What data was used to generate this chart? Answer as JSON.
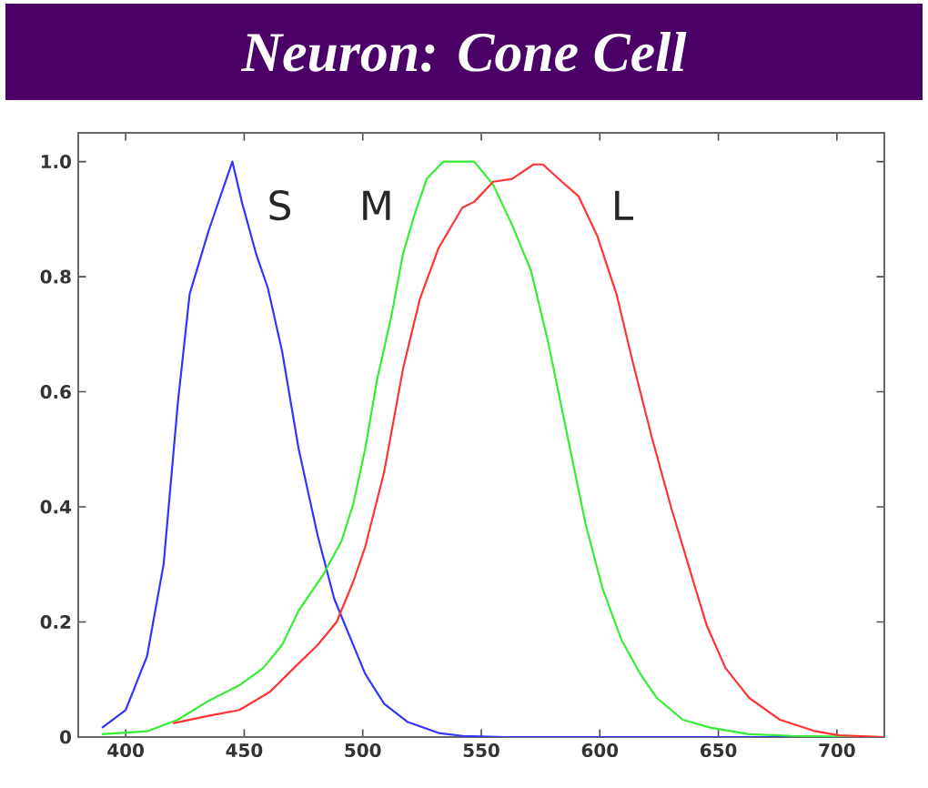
{
  "chart_data": {
    "type": "line",
    "title": "Neuron: Cone Cell",
    "xlim": [
      380,
      720
    ],
    "ylim": [
      0,
      1.05
    ],
    "xticks": [
      400,
      450,
      500,
      550,
      600,
      650,
      700
    ],
    "yticks": [
      {
        "value": 0,
        "label": "0"
      },
      {
        "value": 0.2,
        "label": "0.2"
      },
      {
        "value": 0.4,
        "label": "0.4"
      },
      {
        "value": 0.6,
        "label": "0.6"
      },
      {
        "value": 0.8,
        "label": "0.8"
      },
      {
        "value": 1.0,
        "label": "1.0"
      }
    ],
    "grid": false,
    "marker": "none",
    "line_style": "solid",
    "series": [
      {
        "name": "S",
        "color": "#3333ff",
        "x": [
          390,
          400,
          409,
          416,
          422,
          427,
          435,
          445,
          449,
          455,
          460,
          466,
          473,
          481,
          488,
          496,
          501,
          509,
          519,
          532,
          542,
          560,
          600,
          650,
          700,
          720
        ],
        "values": [
          0.016,
          0.047,
          0.14,
          0.3,
          0.58,
          0.77,
          0.88,
          1.0,
          0.93,
          0.84,
          0.78,
          0.67,
          0.5,
          0.35,
          0.24,
          0.16,
          0.11,
          0.058,
          0.026,
          0.007,
          0.002,
          0,
          0,
          0,
          0,
          0
        ]
      },
      {
        "name": "M",
        "color": "#33ee33",
        "x": [
          390,
          409,
          422,
          435,
          448,
          458,
          466,
          473,
          483,
          491,
          496,
          501,
          506,
          512,
          517,
          522,
          527,
          534,
          547,
          555,
          563,
          571,
          578,
          586,
          594,
          601,
          609,
          617,
          624,
          635,
          647,
          663,
          681,
          720
        ],
        "values": [
          0.005,
          0.01,
          0.03,
          0.063,
          0.09,
          0.12,
          0.16,
          0.22,
          0.28,
          0.34,
          0.405,
          0.5,
          0.62,
          0.73,
          0.84,
          0.91,
          0.97,
          1.0,
          1.0,
          0.96,
          0.89,
          0.81,
          0.69,
          0.53,
          0.37,
          0.26,
          0.17,
          0.11,
          0.068,
          0.03,
          0.016,
          0.005,
          0.002,
          0
        ]
      },
      {
        "name": "L",
        "color": "#ff3333",
        "x": [
          420,
          435,
          448,
          461,
          471,
          481,
          489,
          496,
          501,
          509,
          517,
          524,
          532,
          542,
          547,
          555,
          563,
          572,
          576,
          584,
          591,
          599,
          607,
          614,
          622,
          630,
          638,
          645,
          653,
          663,
          676,
          691,
          701,
          720
        ],
        "values": [
          0.024,
          0.037,
          0.047,
          0.079,
          0.12,
          0.16,
          0.2,
          0.27,
          0.33,
          0.46,
          0.64,
          0.76,
          0.85,
          0.92,
          0.93,
          0.965,
          0.97,
          0.995,
          0.995,
          0.965,
          0.94,
          0.87,
          0.77,
          0.65,
          0.52,
          0.4,
          0.29,
          0.195,
          0.12,
          0.068,
          0.03,
          0.01,
          0.003,
          0
        ]
      }
    ]
  }
}
